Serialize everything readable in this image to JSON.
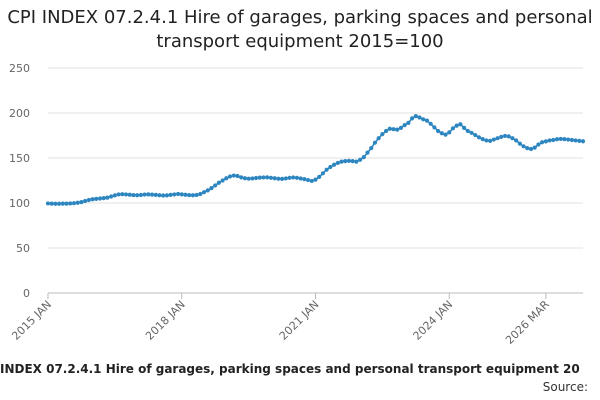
{
  "chart_data": {
    "type": "line",
    "title": "CPI INDEX 07.2.4.1 Hire of garages, parking spaces and personal transport equipment 2015=100",
    "ylim": [
      0,
      250
    ],
    "yticks": [
      0,
      50,
      100,
      150,
      200,
      250
    ],
    "xticks": [
      {
        "label": "2015 JAN",
        "index": 0
      },
      {
        "label": "2018 JAN",
        "index": 36
      },
      {
        "label": "2021 JAN",
        "index": 72
      },
      {
        "label": "2024 JAN",
        "index": 108
      },
      {
        "label": "2026 MAR",
        "index": 134
      }
    ],
    "grid": true,
    "series": [
      {
        "color": "#2e86c1",
        "values": [
          99.5,
          99.3,
          99.2,
          99.2,
          99.3,
          99.3,
          99.5,
          99.8,
          100.3,
          101.0,
          102.2,
          103.3,
          104.2,
          104.6,
          105.0,
          105.4,
          106.0,
          107.2,
          108.5,
          109.5,
          109.8,
          109.5,
          109.2,
          108.8,
          108.6,
          108.9,
          109.4,
          109.6,
          109.3,
          109.0,
          108.6,
          108.3,
          108.5,
          109.0,
          109.5,
          110.0,
          109.6,
          109.2,
          108.8,
          108.6,
          108.9,
          110.0,
          112.0,
          114.0,
          116.5,
          119.5,
          122.5,
          125.0,
          127.5,
          129.5,
          130.5,
          130.0,
          128.5,
          127.5,
          127.0,
          127.3,
          127.8,
          128.2,
          128.4,
          128.5,
          128.0,
          127.5,
          127.0,
          126.8,
          127.3,
          128.0,
          128.4,
          128.0,
          127.2,
          126.5,
          125.5,
          124.5,
          126.0,
          129.0,
          133.0,
          137.0,
          140.0,
          142.5,
          144.5,
          146.0,
          146.5,
          146.8,
          146.5,
          146.0,
          148.0,
          151.0,
          156.0,
          161.0,
          167.0,
          172.0,
          176.5,
          180.0,
          182.5,
          182.0,
          181.5,
          183.5,
          186.5,
          189.0,
          194.0,
          196.5,
          195.0,
          193.0,
          191.5,
          188.0,
          184.0,
          180.0,
          177.5,
          176.0,
          178.5,
          183.0,
          186.0,
          187.5,
          183.5,
          180.0,
          178.0,
          175.5,
          173.0,
          171.0,
          169.5,
          169.0,
          170.5,
          172.0,
          173.5,
          174.5,
          174.0,
          172.0,
          169.5,
          166.0,
          163.0,
          161.0,
          160.0,
          161.5,
          165.0,
          167.5,
          168.5,
          169.5,
          170.0,
          170.8,
          171.2,
          171.0,
          170.5,
          170.0,
          169.5,
          169.0,
          168.6
        ]
      }
    ]
  },
  "footer": {
    "series_label": "INDEX 07.2.4.1 Hire of garages, parking spaces and personal transport equipment 20",
    "source_label": "Source:"
  },
  "colors": {
    "series": "#2e86c1",
    "grid": "#e0e0e0",
    "axis_text": "#666666",
    "title": "#222222"
  }
}
